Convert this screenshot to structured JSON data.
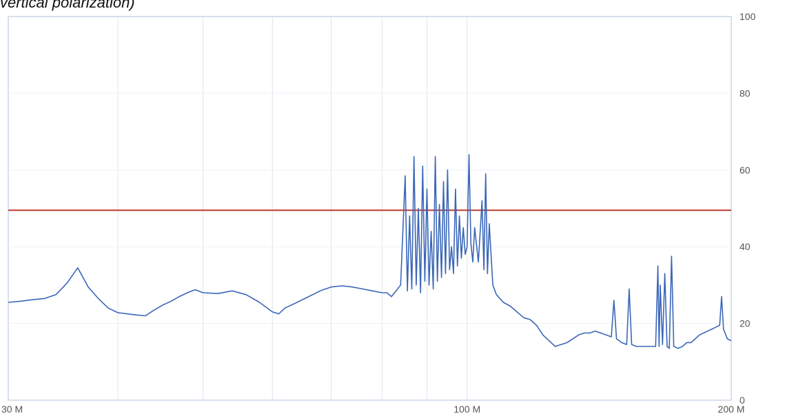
{
  "chart_data": {
    "type": "line",
    "title": "vertical polarization)",
    "xlabel": "",
    "ylabel": "",
    "x_scale": "log",
    "xlim": [
      30,
      200
    ],
    "ylim": [
      0,
      100
    ],
    "x_tick_labels": [
      "30 M",
      "100 M",
      "200 M"
    ],
    "x_tick_values": [
      30,
      100,
      200
    ],
    "y_ticks": [
      0,
      20,
      40,
      60,
      80,
      100
    ],
    "y_axis_side": "right",
    "grid": true,
    "limit_line": {
      "value": 49.5,
      "color": "#c0392b"
    },
    "series": [
      {
        "color": "#3a66b8",
        "points": [
          [
            30,
            25.5
          ],
          [
            31,
            25.8
          ],
          [
            32,
            26.2
          ],
          [
            33,
            26.5
          ],
          [
            34,
            27.5
          ],
          [
            35,
            30.5
          ],
          [
            36,
            34.5
          ],
          [
            37,
            29.5
          ],
          [
            38,
            26.5
          ],
          [
            39,
            24.0
          ],
          [
            40,
            22.8
          ],
          [
            41,
            22.5
          ],
          [
            42,
            22.2
          ],
          [
            43,
            22.0
          ],
          [
            44,
            23.5
          ],
          [
            45,
            24.8
          ],
          [
            46,
            25.8
          ],
          [
            47,
            27.0
          ],
          [
            48,
            28.0
          ],
          [
            49,
            28.8
          ],
          [
            50,
            28.0
          ],
          [
            52,
            27.8
          ],
          [
            54,
            28.5
          ],
          [
            56,
            27.5
          ],
          [
            58,
            25.5
          ],
          [
            60,
            23.0
          ],
          [
            61,
            22.5
          ],
          [
            62,
            24.0
          ],
          [
            64,
            25.5
          ],
          [
            66,
            27.0
          ],
          [
            68,
            28.5
          ],
          [
            70,
            29.5
          ],
          [
            72,
            29.8
          ],
          [
            74,
            29.5
          ],
          [
            76,
            29.0
          ],
          [
            78,
            28.5
          ],
          [
            80,
            28.0
          ],
          [
            81,
            28.0
          ],
          [
            82,
            27.0
          ],
          [
            83,
            28.5
          ],
          [
            84,
            30.0
          ],
          [
            85,
            58.5
          ],
          [
            85.5,
            28.5
          ],
          [
            86,
            48.0
          ],
          [
            86.5,
            29.0
          ],
          [
            87,
            63.5
          ],
          [
            87.5,
            30.0
          ],
          [
            88,
            50.0
          ],
          [
            88.5,
            28.0
          ],
          [
            89,
            61.0
          ],
          [
            89.5,
            31.0
          ],
          [
            90,
            55.0
          ],
          [
            90.5,
            30.0
          ],
          [
            91,
            44.0
          ],
          [
            91.5,
            29.0
          ],
          [
            92,
            63.5
          ],
          [
            92.5,
            31.0
          ],
          [
            93,
            51.0
          ],
          [
            93.5,
            32.0
          ],
          [
            94,
            57.0
          ],
          [
            94.5,
            33.0
          ],
          [
            95,
            60.0
          ],
          [
            95.5,
            34.0
          ],
          [
            96,
            40.0
          ],
          [
            96.5,
            33.0
          ],
          [
            97,
            55.0
          ],
          [
            97.5,
            35.0
          ],
          [
            98,
            48.0
          ],
          [
            98.5,
            37.0
          ],
          [
            99,
            45.0
          ],
          [
            99.5,
            38.0
          ],
          [
            100,
            40.0
          ],
          [
            100.5,
            64.0
          ],
          [
            101,
            41.0
          ],
          [
            101.5,
            36.0
          ],
          [
            102,
            45.0
          ],
          [
            103,
            36.0
          ],
          [
            104,
            52.0
          ],
          [
            104.5,
            34.0
          ],
          [
            105,
            59.0
          ],
          [
            105.5,
            33.0
          ],
          [
            106,
            46.0
          ],
          [
            107,
            30.0
          ],
          [
            108,
            27.5
          ],
          [
            110,
            25.5
          ],
          [
            112,
            24.5
          ],
          [
            114,
            23.0
          ],
          [
            116,
            21.5
          ],
          [
            118,
            21.0
          ],
          [
            120,
            19.5
          ],
          [
            122,
            17.0
          ],
          [
            124,
            15.5
          ],
          [
            126,
            14.0
          ],
          [
            128,
            14.5
          ],
          [
            130,
            15.0
          ],
          [
            132,
            16.0
          ],
          [
            134,
            17.0
          ],
          [
            136,
            17.5
          ],
          [
            138,
            17.5
          ],
          [
            140,
            18.0
          ],
          [
            142,
            17.5
          ],
          [
            144,
            17.0
          ],
          [
            146,
            16.5
          ],
          [
            147,
            26.0
          ],
          [
            148,
            16.0
          ],
          [
            150,
            15.0
          ],
          [
            152,
            14.5
          ],
          [
            153,
            29.0
          ],
          [
            154,
            14.5
          ],
          [
            156,
            14.0
          ],
          [
            158,
            14.0
          ],
          [
            160,
            14.0
          ],
          [
            162,
            14.0
          ],
          [
            164,
            14.0
          ],
          [
            165,
            35.0
          ],
          [
            165.5,
            14.0
          ],
          [
            166,
            30.0
          ],
          [
            167,
            14.5
          ],
          [
            168,
            33.0
          ],
          [
            169,
            14.0
          ],
          [
            170,
            13.5
          ],
          [
            171,
            37.5
          ],
          [
            172,
            14.0
          ],
          [
            174,
            13.5
          ],
          [
            176,
            14.0
          ],
          [
            178,
            15.0
          ],
          [
            180,
            15.0
          ],
          [
            182,
            16.0
          ],
          [
            184,
            17.0
          ],
          [
            186,
            17.5
          ],
          [
            188,
            18.0
          ],
          [
            190,
            18.5
          ],
          [
            192,
            19.0
          ],
          [
            194,
            19.5
          ],
          [
            195,
            27.0
          ],
          [
            196,
            18.5
          ],
          [
            198,
            16.0
          ],
          [
            200,
            15.5
          ]
        ]
      }
    ]
  }
}
